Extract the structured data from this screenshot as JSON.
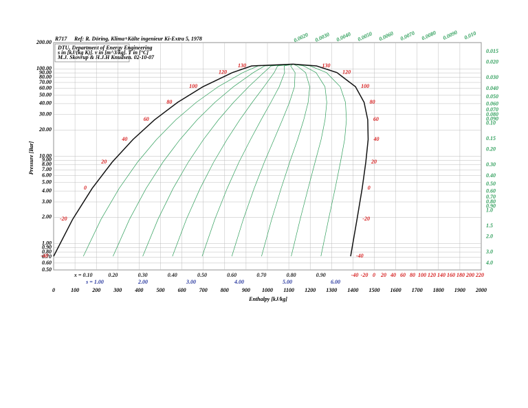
{
  "chart_data": {
    "type": "line",
    "title": "R717",
    "reference": "Ref: R. Döring, Klima+Kälte ingenieur Ki-Extra 5, 1978",
    "info": [
      "DTU, Department of Energy Engineering",
      "s in [kJ/(kg K)]. v in [m^3/kg]. T in [°C]",
      "M.J. Skovrup & H.J.H Knudsen. 02-10-07"
    ],
    "x_label": "Enthalpy [kJ/kg]",
    "y_label": "Pressure [Bar]",
    "xlim": [
      0,
      2000
    ],
    "ylim": [
      0.5,
      200
    ],
    "log_y": true,
    "grid": true,
    "xticks": [
      0,
      100,
      200,
      300,
      400,
      500,
      600,
      700,
      800,
      900,
      1000,
      1100,
      1200,
      1300,
      1400,
      1500,
      1600,
      1700,
      1800,
      1900,
      2000
    ],
    "yticks": [
      {
        "value": 200,
        "label": "200.00"
      },
      {
        "value": 100,
        "label": "100.00"
      },
      {
        "value": 90,
        "label": "90.00"
      },
      {
        "value": 80,
        "label": "80.00"
      },
      {
        "value": 70,
        "label": "70.00"
      },
      {
        "value": 60,
        "label": "60.00"
      },
      {
        "value": 50,
        "label": "50.00"
      },
      {
        "value": 40,
        "label": "40.00"
      },
      {
        "value": 30,
        "label": "30.00"
      },
      {
        "value": 20,
        "label": "20.00"
      },
      {
        "value": 10,
        "label": "10.00"
      },
      {
        "value": 9,
        "label": "9.00"
      },
      {
        "value": 8,
        "label": "8.00"
      },
      {
        "value": 7,
        "label": "7.00"
      },
      {
        "value": 6,
        "label": "6.00"
      },
      {
        "value": 5,
        "label": "5.00"
      },
      {
        "value": 4,
        "label": "4.00"
      },
      {
        "value": 3,
        "label": "3.00"
      },
      {
        "value": 2,
        "label": "2.00"
      },
      {
        "value": 1,
        "label": "1.00"
      },
      {
        "value": 0.9,
        "label": "0.90"
      },
      {
        "value": 0.8,
        "label": "0.80"
      },
      {
        "value": 0.7,
        "label": "0.70"
      },
      {
        "value": 0.6,
        "label": "0.60"
      },
      {
        "value": 0.5,
        "label": "0.50"
      }
    ],
    "series": [
      {
        "color": "#111111",
        "x": [
          0,
          89,
          180,
          274,
          371,
          472,
          580,
          698,
          836,
          926,
          1120,
          1230,
          1325,
          1412,
          1452,
          1469,
          1471,
          1460,
          1443,
          1419,
          1389
        ],
        "values": [
          0.717,
          1.9,
          4.29,
          8.57,
          15.55,
          26.15,
          41.4,
          62.5,
          90.7,
          108,
          113.3,
          108,
          90.7,
          62.5,
          41.4,
          26.15,
          15.55,
          8.57,
          4.29,
          1.9,
          0.717
        ],
        "temperatures": [
          -40,
          -20,
          0,
          20,
          40,
          60,
          80,
          100,
          120,
          130,
          null,
          130,
          120,
          100,
          80,
          60,
          40,
          20,
          0,
          -20,
          -40
        ]
      }
    ],
    "qualities": [
      {
        "value": 0.1,
        "label": "x = 0.10"
      },
      {
        "value": 0.2,
        "label": "0.20"
      },
      {
        "value": 0.3,
        "label": "0.30"
      },
      {
        "value": 0.4,
        "label": "0.40"
      },
      {
        "value": 0.5,
        "label": "0.50"
      },
      {
        "value": 0.6,
        "label": "0.60"
      },
      {
        "value": 0.7,
        "label": "0.70"
      },
      {
        "value": 0.8,
        "label": "0.80"
      },
      {
        "value": 0.9,
        "label": "0.90"
      }
    ],
    "entropies": [
      {
        "value": 1,
        "label": "s = 1.00"
      },
      {
        "value": 2,
        "label": "2.00"
      },
      {
        "value": 3,
        "label": "3.00"
      },
      {
        "value": 4,
        "label": "4.00"
      },
      {
        "value": 5,
        "label": "5.00"
      },
      {
        "value": 6,
        "label": "6.00"
      }
    ],
    "superheat_temperatures": [
      -40,
      -20,
      0,
      20,
      40,
      60,
      80,
      100,
      120,
      140,
      160,
      180,
      200,
      220
    ],
    "volume_labels_right": [
      "0.015",
      "0.020",
      "0.030",
      "0.040",
      "0.050",
      "0.060",
      "0.070",
      "0.080",
      "0.090",
      "0.10",
      "0.15",
      "0.20",
      "0.30",
      "0.40",
      "0.50",
      "0.60",
      "0.70",
      "0.80",
      "0.90",
      "1.0",
      "1.5",
      "2.0",
      "3.0",
      "4.0"
    ],
    "volume_labels_top": [
      "0.0020",
      "0.0030",
      "0.0040",
      "0.0050",
      "0.0060",
      "0.0070",
      "0.0080",
      "0.0090",
      "0.010"
    ]
  }
}
